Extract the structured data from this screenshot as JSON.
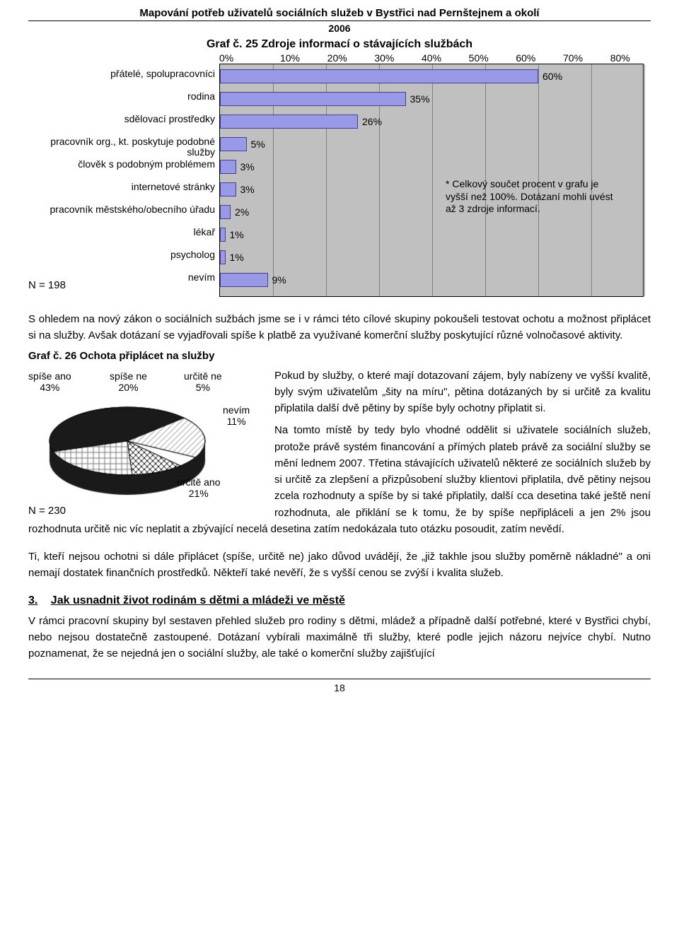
{
  "header": {
    "title": "Mapování potřeb uživatelů sociálních služeb v Bystřici nad Pernštejnem a okolí",
    "year": "2006"
  },
  "barChart": {
    "type": "bar",
    "title": "Graf č. 25 Zdroje informací o stávajících službách",
    "xmax": 80,
    "xtick_step": 10,
    "tick_labels": [
      "0%",
      "10%",
      "20%",
      "30%",
      "40%",
      "50%",
      "60%",
      "70%",
      "80%"
    ],
    "bar_color": "#9999e6",
    "bar_border": "#4040a0",
    "plot_bg": "#c0c0c0",
    "grid_color": "#808080",
    "n_label": "N = 198",
    "note": "* Celkový součet procent v grafu je vyšší než 100%. Dotázaní mohli uvést až 3 zdroje informací.",
    "items": [
      {
        "label": "přátelé, spolupracovníci",
        "value": 60,
        "text": "60%"
      },
      {
        "label": "rodina",
        "value": 35,
        "text": "35%"
      },
      {
        "label": "sdělovací prostředky",
        "value": 26,
        "text": "26%"
      },
      {
        "label": "pracovník org., kt. poskytuje podobné služby",
        "value": 5,
        "text": "5%"
      },
      {
        "label": "člověk s podobným problémem",
        "value": 3,
        "text": "3%"
      },
      {
        "label": "internetové stránky",
        "value": 3,
        "text": "3%"
      },
      {
        "label": "pracovník městského/obecního úřadu",
        "value": 2,
        "text": "2%"
      },
      {
        "label": "lékař",
        "value": 1,
        "text": "1%"
      },
      {
        "label": "psycholog",
        "value": 1,
        "text": "1%"
      },
      {
        "label": "nevím",
        "value": 9,
        "text": "9%"
      }
    ]
  },
  "para1": "S ohledem na nový zákon o sociálních sužbách jsme se i v rámci této cílové skupiny pokoušeli testovat ochotu a možnost připlácet si na služby. Avšak dotázaní se vyjadřovali spíše k platbě za využívané komerční služby poskytující různé volnočasové aktivity.",
  "pieChart": {
    "type": "pie",
    "title": "Graf č. 26 Ochota připlácet na služby",
    "n_label": "N = 230",
    "slices": [
      {
        "label": "spíše ano",
        "value": 43,
        "text": "spíše ano\n43%",
        "pattern": "solid",
        "color": "#1a1a1a"
      },
      {
        "label": "spíše ne",
        "value": 20,
        "text": "spíše ne\n20%",
        "pattern": "diag",
        "color": "#888"
      },
      {
        "label": "určitě ne",
        "value": 5,
        "text": "určitě ne\n5%",
        "pattern": "solid",
        "color": "#ffffff"
      },
      {
        "label": "nevím",
        "value": 11,
        "text": "nevím\n11%",
        "pattern": "cross",
        "color": "#000"
      },
      {
        "label": "určitě ano",
        "value": 21,
        "text": "určitě ano\n21%",
        "pattern": "grid",
        "color": "#777"
      }
    ],
    "stroke": "#000"
  },
  "para2": "Pokud by služby, o které mají dotazovaní zájem, byly nabízeny ve vyšší kvalitě, byly svým uživatelům „šity na míru\", pětina dotázaných by si určitě za kvalitu připlatila další dvě pětiny by spíše byly ochotny připlatit si.",
  "para3": "Na tomto místě by tedy bylo vhodné oddělit si uživatele sociálních služeb, protože právě systém financování a přímých plateb právě za sociální služby se mění lednem 2007. Třetina stávajících uživatelů některé ze sociálních služeb by si určitě za zlepšení a přizpůsobení služby klientovi připlatila, dvě pětiny nejsou zcela rozhodnuty a spíše by si také připlatily, další cca desetina také ještě není rozhodnuta, ale přiklání se k tomu, že by spíše nepřipláceli a jen 2% jsou rozhodnuta určitě nic víc neplatit a zbývající necelá desetina zatím nedokázala tuto otázku posoudit, zatím nevědí.",
  "para4": "Ti, kteří nejsou ochotni si dále připlácet (spíše, určitě ne) jako důvod uvádějí, že „již takhle jsou služby poměrně nákladné\" a oni nemají dostatek finančních prostředků. Někteří také nevěří, že s vyšší cenou se zvýší i kvalita služeb.",
  "section3": {
    "num": "3.",
    "title": "Jak usnadnit život rodinám s dětmi a mládeži ve městě"
  },
  "para5": "V rámci pracovní skupiny byl sestaven přehled služeb pro rodiny s dětmi, mládež a případně další potřebné, které v Bystřici chybí, nebo nejsou dostatečně zastoupené. Dotázaní vybírali maximálně tři služby, které podle jejich názoru nejvíce chybí. Nutno poznamenat, že se nejedná jen o sociální služby, ale také o komerční služby zajišťující",
  "pageNumber": "18"
}
